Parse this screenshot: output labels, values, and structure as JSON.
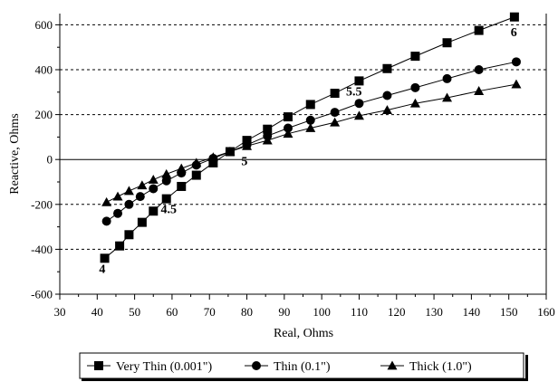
{
  "chart_data": {
    "type": "scatter",
    "xlabel": "Real, Ohms",
    "ylabel": "Reactive, Ohms",
    "xlim": [
      30,
      160
    ],
    "ylim": [
      -600,
      650
    ],
    "x_ticks": [
      30,
      40,
      50,
      60,
      70,
      80,
      90,
      100,
      110,
      120,
      130,
      140,
      150,
      160
    ],
    "y_ticks": [
      -600,
      -400,
      -200,
      0,
      200,
      400,
      600
    ],
    "grid": "horizontal dashed",
    "legend": "bottom",
    "series": [
      {
        "name": "Very Thin (0.001\")",
        "marker": "square",
        "x": [
          42,
          46,
          48.5,
          52,
          55,
          58.5,
          62.5,
          66.5,
          71,
          75.5,
          80,
          85.5,
          91,
          97,
          103.5,
          110,
          117.5,
          125,
          133.5,
          142,
          151.5
        ],
        "y": [
          -440,
          -385,
          -335,
          -280,
          -230,
          -175,
          -120,
          -70,
          -15,
          35,
          85,
          135,
          190,
          245,
          295,
          350,
          405,
          460,
          520,
          575,
          635
        ]
      },
      {
        "name": "Thin (0.1\")",
        "marker": "circle",
        "x": [
          42.5,
          45.5,
          48.5,
          51.5,
          55,
          58.5,
          62.5,
          66.5,
          71,
          75.5,
          80,
          85.5,
          91,
          97,
          103.5,
          110,
          117.5,
          125,
          133.5,
          142,
          152
        ],
        "y": [
          -275,
          -240,
          -200,
          -165,
          -130,
          -95,
          -60,
          -25,
          5,
          35,
          65,
          105,
          140,
          175,
          210,
          250,
          285,
          320,
          360,
          400,
          435
        ]
      },
      {
        "name": "Thick (1.0\")",
        "marker": "triangle",
        "x": [
          42.5,
          45.5,
          48.5,
          52,
          55,
          58.5,
          62.5,
          66.5,
          71,
          75.5,
          80,
          85.5,
          91,
          97,
          103.5,
          110,
          117.5,
          125,
          133.5,
          142,
          152
        ],
        "y": [
          -190,
          -165,
          -140,
          -115,
          -90,
          -65,
          -40,
          -15,
          10,
          35,
          60,
          85,
          115,
          140,
          165,
          195,
          220,
          250,
          275,
          305,
          335
        ]
      }
    ],
    "annotations": [
      {
        "text": "4",
        "x": 40.5,
        "y": -505
      },
      {
        "text": "4.5",
        "x": 57,
        "y": -240
      },
      {
        "text": "5",
        "x": 78.5,
        "y": -25
      },
      {
        "text": "5.5",
        "x": 106.5,
        "y": 285
      },
      {
        "text": "6",
        "x": 150.5,
        "y": 550
      }
    ]
  }
}
